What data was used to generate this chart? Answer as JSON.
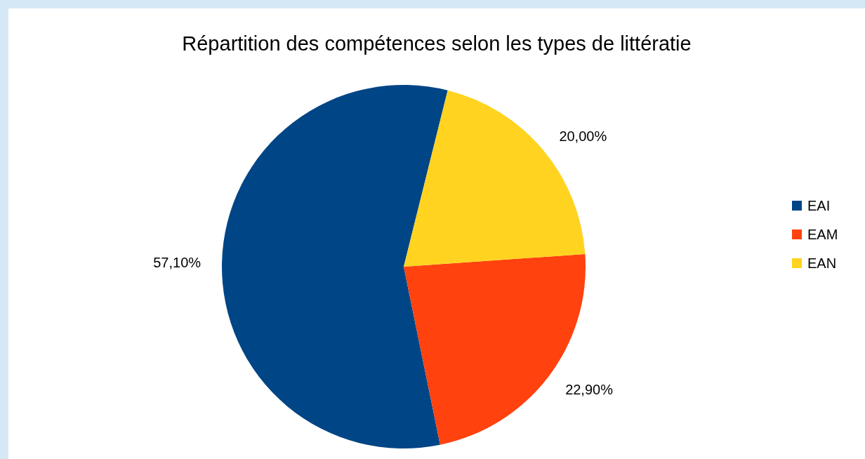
{
  "chart_data": {
    "type": "pie",
    "title": "Répartition des compétences selon les types de littératie",
    "categories": [
      "EAI",
      "EAM",
      "EAN"
    ],
    "values": [
      57.1,
      22.9,
      20
    ],
    "value_labels": [
      "57,10%",
      "22,90%",
      "20,00%"
    ],
    "colors": [
      "#004586",
      "#ff420e",
      "#ffd320"
    ],
    "legend": "right"
  }
}
